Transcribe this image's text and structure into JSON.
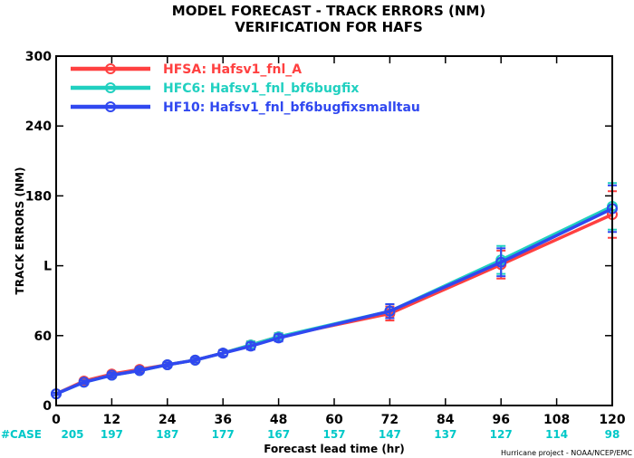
{
  "chart_data": {
    "type": "line",
    "title": "MODEL FORECAST - TRACK ERRORS (NM)",
    "subtitle": "VERIFICATION FOR HAFS",
    "xlabel": "Forecast lead time (hr)",
    "ylabel": "TRACK ERRORS (NM)",
    "xlim": [
      0,
      120
    ],
    "ylim": [
      0,
      300
    ],
    "xticks": [
      0,
      12,
      24,
      36,
      48,
      60,
      72,
      84,
      96,
      108,
      120
    ],
    "yticks": [
      0,
      60,
      120,
      180,
      240,
      300
    ],
    "ytick_labels": [
      "0",
      "60",
      "L",
      "180",
      "240",
      "300"
    ],
    "legend_position": "top-left",
    "case_label": "#CASE",
    "case_counts": [
      {
        "x": 0,
        "n": "205"
      },
      {
        "x": 12,
        "n": "197"
      },
      {
        "x": 24,
        "n": "187"
      },
      {
        "x": 36,
        "n": "177"
      },
      {
        "x": 48,
        "n": "167"
      },
      {
        "x": 60,
        "n": "157"
      },
      {
        "x": 72,
        "n": "147"
      },
      {
        "x": 84,
        "n": "137"
      },
      {
        "x": 96,
        "n": "127"
      },
      {
        "x": 108,
        "n": "114"
      },
      {
        "x": 120,
        "n": "98"
      }
    ],
    "credit": "Hurricane project - NOAA/NCEP/EMC",
    "series": [
      {
        "name": "HFSA: Hafsv1_fnl_A",
        "color": "#ff4040",
        "x": [
          0,
          6,
          12,
          18,
          24,
          30,
          36,
          42,
          48,
          72,
          96,
          120
        ],
        "y": [
          10,
          21,
          27,
          31,
          35,
          39,
          45,
          52,
          59,
          79,
          121,
          164
        ],
        "err": [
          1,
          1.5,
          2,
          2,
          2,
          2,
          2.5,
          3,
          3,
          6,
          12,
          20
        ]
      },
      {
        "name": "HFC6: Hafsv1_fnl_bf6bugfix",
        "color": "#20d0c0",
        "x": [
          0,
          6,
          12,
          18,
          24,
          30,
          36,
          42,
          48,
          72,
          96,
          120
        ],
        "y": [
          10,
          20,
          26,
          30,
          35,
          39,
          45,
          52,
          59,
          81,
          125,
          171
        ],
        "err": [
          1,
          1.5,
          2,
          2,
          2,
          2,
          2.5,
          3,
          3,
          6,
          12,
          20
        ]
      },
      {
        "name": "HF10: Hafsv1_fnl_bf6bugfixsmalltau",
        "color": "#3048f0",
        "x": [
          0,
          6,
          12,
          18,
          24,
          30,
          36,
          42,
          48,
          72,
          96,
          120
        ],
        "y": [
          10,
          20,
          26,
          30,
          35,
          39,
          45,
          51,
          58,
          81,
          123,
          169
        ],
        "err": [
          1,
          1.5,
          2,
          2,
          2,
          2,
          2.5,
          3,
          3,
          6,
          12,
          20
        ]
      }
    ]
  }
}
